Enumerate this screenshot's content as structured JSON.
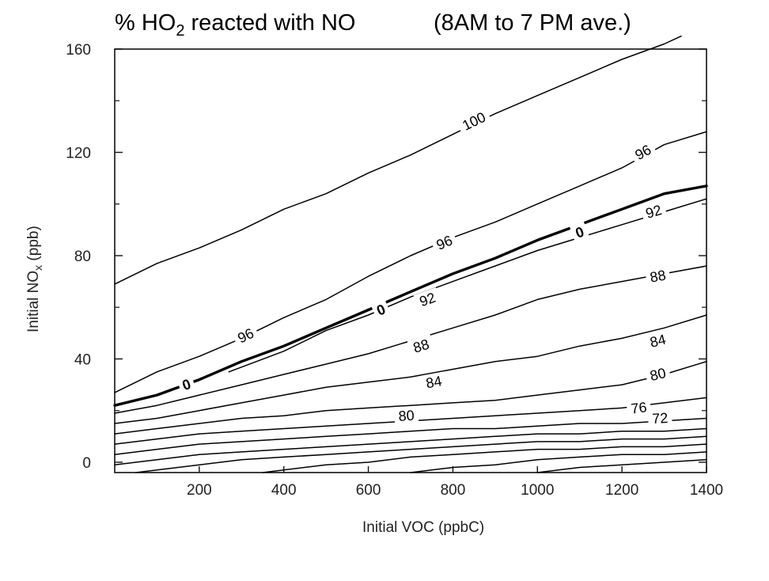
{
  "chart_data": {
    "type": "line",
    "title": {
      "prefix": "% HO",
      "subscript": "2",
      "suffix": " reacted with NO",
      "period": "(8AM to 7 PM ave.)"
    },
    "xlabel": "Initial VOC  (ppbC)",
    "ylabel": {
      "main": "Initial NO",
      "subscript": "x",
      "unit": " (ppb)"
    },
    "xlim": [
      0,
      1400
    ],
    "ylim": [
      -4,
      160
    ],
    "x_ticks": [
      {
        "value": 200,
        "label": "200"
      },
      {
        "value": 400,
        "label": "400"
      },
      {
        "value": 600,
        "label": "600"
      },
      {
        "value": 800,
        "label": "800"
      },
      {
        "value": 1000,
        "label": "1000"
      },
      {
        "value": 1200,
        "label": "1200"
      },
      {
        "value": 1400,
        "label": "1400"
      }
    ],
    "y_ticks": [
      {
        "value": 0,
        "label": "0"
      },
      {
        "value": 40,
        "label": "40"
      },
      {
        "value": 80,
        "label": "80"
      },
      {
        "value": 120,
        "label": "120"
      },
      {
        "value": 160,
        "label": "160"
      }
    ],
    "series": [
      {
        "key": "c100",
        "label": "100",
        "label_at": [
          850,
          132
        ],
        "bold": false,
        "points": [
          [
            0,
            69
          ],
          [
            100,
            77
          ],
          [
            200,
            83
          ],
          [
            300,
            90
          ],
          [
            400,
            98
          ],
          [
            500,
            104
          ],
          [
            600,
            112
          ],
          [
            700,
            119
          ],
          [
            800,
            127
          ],
          [
            900,
            135
          ],
          [
            1000,
            142
          ],
          [
            1100,
            149
          ],
          [
            1200,
            156
          ],
          [
            1300,
            162
          ],
          [
            1340,
            165
          ]
        ]
      },
      {
        "key": "c96a",
        "label": "96",
        "label_at": [
          310,
          49
        ],
        "bold": false,
        "points": [
          [
            0,
            27
          ],
          [
            100,
            35
          ],
          [
            200,
            41
          ],
          [
            300,
            48
          ],
          [
            400,
            56
          ],
          [
            500,
            63
          ],
          [
            600,
            72
          ],
          [
            700,
            80
          ],
          [
            800,
            87
          ],
          [
            900,
            93
          ],
          [
            1000,
            100
          ],
          [
            1100,
            107
          ],
          [
            1200,
            114
          ],
          [
            1300,
            123
          ],
          [
            1400,
            128
          ]
        ]
      },
      {
        "key": "c96b",
        "label": "96",
        "label_at": [
          780,
          85
        ],
        "bold": false,
        "same_as": "c96a"
      },
      {
        "key": "c96c",
        "label": "96",
        "label_at": [
          1250,
          120
        ],
        "bold": false,
        "same_as": "c96a"
      },
      {
        "key": "c0",
        "label": "0",
        "label_at": [
          170,
          30
        ],
        "bold": true,
        "points": [
          [
            0,
            22
          ],
          [
            100,
            26
          ],
          [
            200,
            32
          ],
          [
            300,
            39
          ],
          [
            400,
            45
          ],
          [
            500,
            52
          ],
          [
            600,
            59
          ],
          [
            700,
            66
          ],
          [
            800,
            73
          ],
          [
            900,
            79
          ],
          [
            1000,
            86
          ],
          [
            1100,
            92
          ],
          [
            1200,
            98
          ],
          [
            1300,
            104
          ],
          [
            1400,
            107
          ]
        ]
      },
      {
        "key": "c0b",
        "label": "0",
        "label_at": [
          630,
          59
        ],
        "bold": true,
        "same_as": "c0"
      },
      {
        "key": "c0c",
        "label": "0",
        "label_at": [
          1100,
          89
        ],
        "bold": true,
        "same_as": "c0"
      },
      {
        "key": "c92a",
        "label": "92",
        "label_at": [
          740,
          63
        ],
        "bold": false,
        "points": [
          [
            270,
            35
          ],
          [
            400,
            43
          ],
          [
            500,
            51
          ],
          [
            600,
            57
          ],
          [
            700,
            64
          ],
          [
            800,
            70
          ],
          [
            900,
            76
          ],
          [
            1000,
            82
          ],
          [
            1100,
            87
          ],
          [
            1200,
            92
          ],
          [
            1300,
            97
          ],
          [
            1400,
            102
          ]
        ]
      },
      {
        "key": "c92b",
        "label": "92",
        "label_at": [
          1275,
          97
        ],
        "bold": false,
        "same_as": "c92a"
      },
      {
        "key": "c88a",
        "label": "88",
        "label_at": [
          725,
          45
        ],
        "bold": false,
        "points": [
          [
            0,
            19
          ],
          [
            100,
            22
          ],
          [
            200,
            26
          ],
          [
            300,
            30
          ],
          [
            400,
            34
          ],
          [
            500,
            38
          ],
          [
            600,
            42
          ],
          [
            700,
            47
          ],
          [
            800,
            52
          ],
          [
            900,
            57
          ],
          [
            1000,
            63
          ],
          [
            1100,
            67
          ],
          [
            1200,
            70
          ],
          [
            1300,
            73
          ],
          [
            1400,
            76
          ]
        ]
      },
      {
        "key": "c88b",
        "label": "88",
        "label_at": [
          1285,
          72
        ],
        "bold": false,
        "same_as": "c88a"
      },
      {
        "key": "c84a",
        "label": "84",
        "label_at": [
          755,
          31
        ],
        "bold": false,
        "points": [
          [
            0,
            15
          ],
          [
            100,
            17
          ],
          [
            200,
            20
          ],
          [
            300,
            23
          ],
          [
            400,
            26
          ],
          [
            500,
            29
          ],
          [
            600,
            31
          ],
          [
            700,
            33
          ],
          [
            800,
            36
          ],
          [
            900,
            39
          ],
          [
            1000,
            41
          ],
          [
            1100,
            45
          ],
          [
            1200,
            48
          ],
          [
            1300,
            52
          ],
          [
            1400,
            57
          ]
        ]
      },
      {
        "key": "c84b",
        "label": "84",
        "label_at": [
          1285,
          47
        ],
        "bold": false,
        "same_as": "c84a"
      },
      {
        "key": "c80a",
        "label": "80",
        "label_at": [
          690,
          18
        ],
        "bold": false,
        "points": [
          [
            0,
            11
          ],
          [
            100,
            13
          ],
          [
            200,
            15
          ],
          [
            300,
            17
          ],
          [
            400,
            18
          ],
          [
            500,
            20
          ],
          [
            600,
            21
          ],
          [
            700,
            22
          ],
          [
            800,
            23
          ],
          [
            900,
            24
          ],
          [
            1000,
            26
          ],
          [
            1100,
            28
          ],
          [
            1200,
            30
          ],
          [
            1300,
            34
          ],
          [
            1400,
            39
          ]
        ]
      },
      {
        "key": "c80b",
        "label": "80",
        "label_at": [
          1285,
          34
        ],
        "bold": false,
        "same_as": "c80a"
      },
      {
        "key": "c76",
        "label": "76",
        "label_at": [
          1240,
          21
        ],
        "bold": false,
        "points": [
          [
            0,
            7
          ],
          [
            100,
            9
          ],
          [
            200,
            11
          ],
          [
            300,
            12
          ],
          [
            400,
            13
          ],
          [
            500,
            14
          ],
          [
            600,
            15
          ],
          [
            700,
            16
          ],
          [
            800,
            17
          ],
          [
            900,
            18
          ],
          [
            1000,
            19
          ],
          [
            1100,
            20
          ],
          [
            1200,
            21
          ],
          [
            1300,
            23
          ],
          [
            1400,
            25
          ]
        ]
      },
      {
        "key": "c72",
        "label": "72",
        "label_at": [
          1290,
          17
        ],
        "bold": false,
        "points": [
          [
            0,
            3
          ],
          [
            100,
            5
          ],
          [
            200,
            7
          ],
          [
            300,
            8
          ],
          [
            400,
            9
          ],
          [
            500,
            10
          ],
          [
            600,
            11
          ],
          [
            700,
            12
          ],
          [
            800,
            13
          ],
          [
            900,
            13
          ],
          [
            1000,
            14
          ],
          [
            1100,
            15
          ],
          [
            1200,
            15
          ],
          [
            1300,
            16
          ],
          [
            1400,
            17
          ]
        ]
      },
      {
        "key": "c68",
        "label": "",
        "label_at": null,
        "bold": false,
        "points": [
          [
            0,
            -1
          ],
          [
            100,
            1
          ],
          [
            200,
            3
          ],
          [
            300,
            4
          ],
          [
            400,
            5
          ],
          [
            500,
            6
          ],
          [
            600,
            7
          ],
          [
            700,
            8
          ],
          [
            800,
            9
          ],
          [
            900,
            10
          ],
          [
            1000,
            11
          ],
          [
            1100,
            11
          ],
          [
            1200,
            12
          ],
          [
            1300,
            12
          ],
          [
            1400,
            13
          ]
        ]
      },
      {
        "key": "c64",
        "label": "",
        "label_at": null,
        "bold": false,
        "points": [
          [
            50,
            -4
          ],
          [
            200,
            -1
          ],
          [
            300,
            1
          ],
          [
            400,
            2
          ],
          [
            500,
            3
          ],
          [
            600,
            4
          ],
          [
            700,
            5
          ],
          [
            800,
            6
          ],
          [
            900,
            7
          ],
          [
            1000,
            8
          ],
          [
            1100,
            8
          ],
          [
            1200,
            9
          ],
          [
            1300,
            9
          ],
          [
            1400,
            10
          ]
        ]
      },
      {
        "key": "c60",
        "label": "",
        "label_at": null,
        "bold": false,
        "points": [
          [
            350,
            -4
          ],
          [
            500,
            -1
          ],
          [
            600,
            0
          ],
          [
            700,
            2
          ],
          [
            800,
            3
          ],
          [
            900,
            4
          ],
          [
            1000,
            5
          ],
          [
            1100,
            5
          ],
          [
            1200,
            6
          ],
          [
            1300,
            6
          ],
          [
            1400,
            7
          ]
        ]
      },
      {
        "key": "c56",
        "label": "",
        "label_at": null,
        "bold": false,
        "points": [
          [
            700,
            -4
          ],
          [
            800,
            -2
          ],
          [
            900,
            -1
          ],
          [
            1000,
            1
          ],
          [
            1100,
            2
          ],
          [
            1200,
            3
          ],
          [
            1300,
            3
          ],
          [
            1400,
            4
          ]
        ]
      },
      {
        "key": "c52",
        "label": "",
        "label_at": null,
        "bold": false,
        "points": [
          [
            1000,
            -4
          ],
          [
            1100,
            -2
          ],
          [
            1200,
            -1
          ],
          [
            1300,
            0
          ],
          [
            1400,
            1
          ]
        ]
      }
    ]
  }
}
